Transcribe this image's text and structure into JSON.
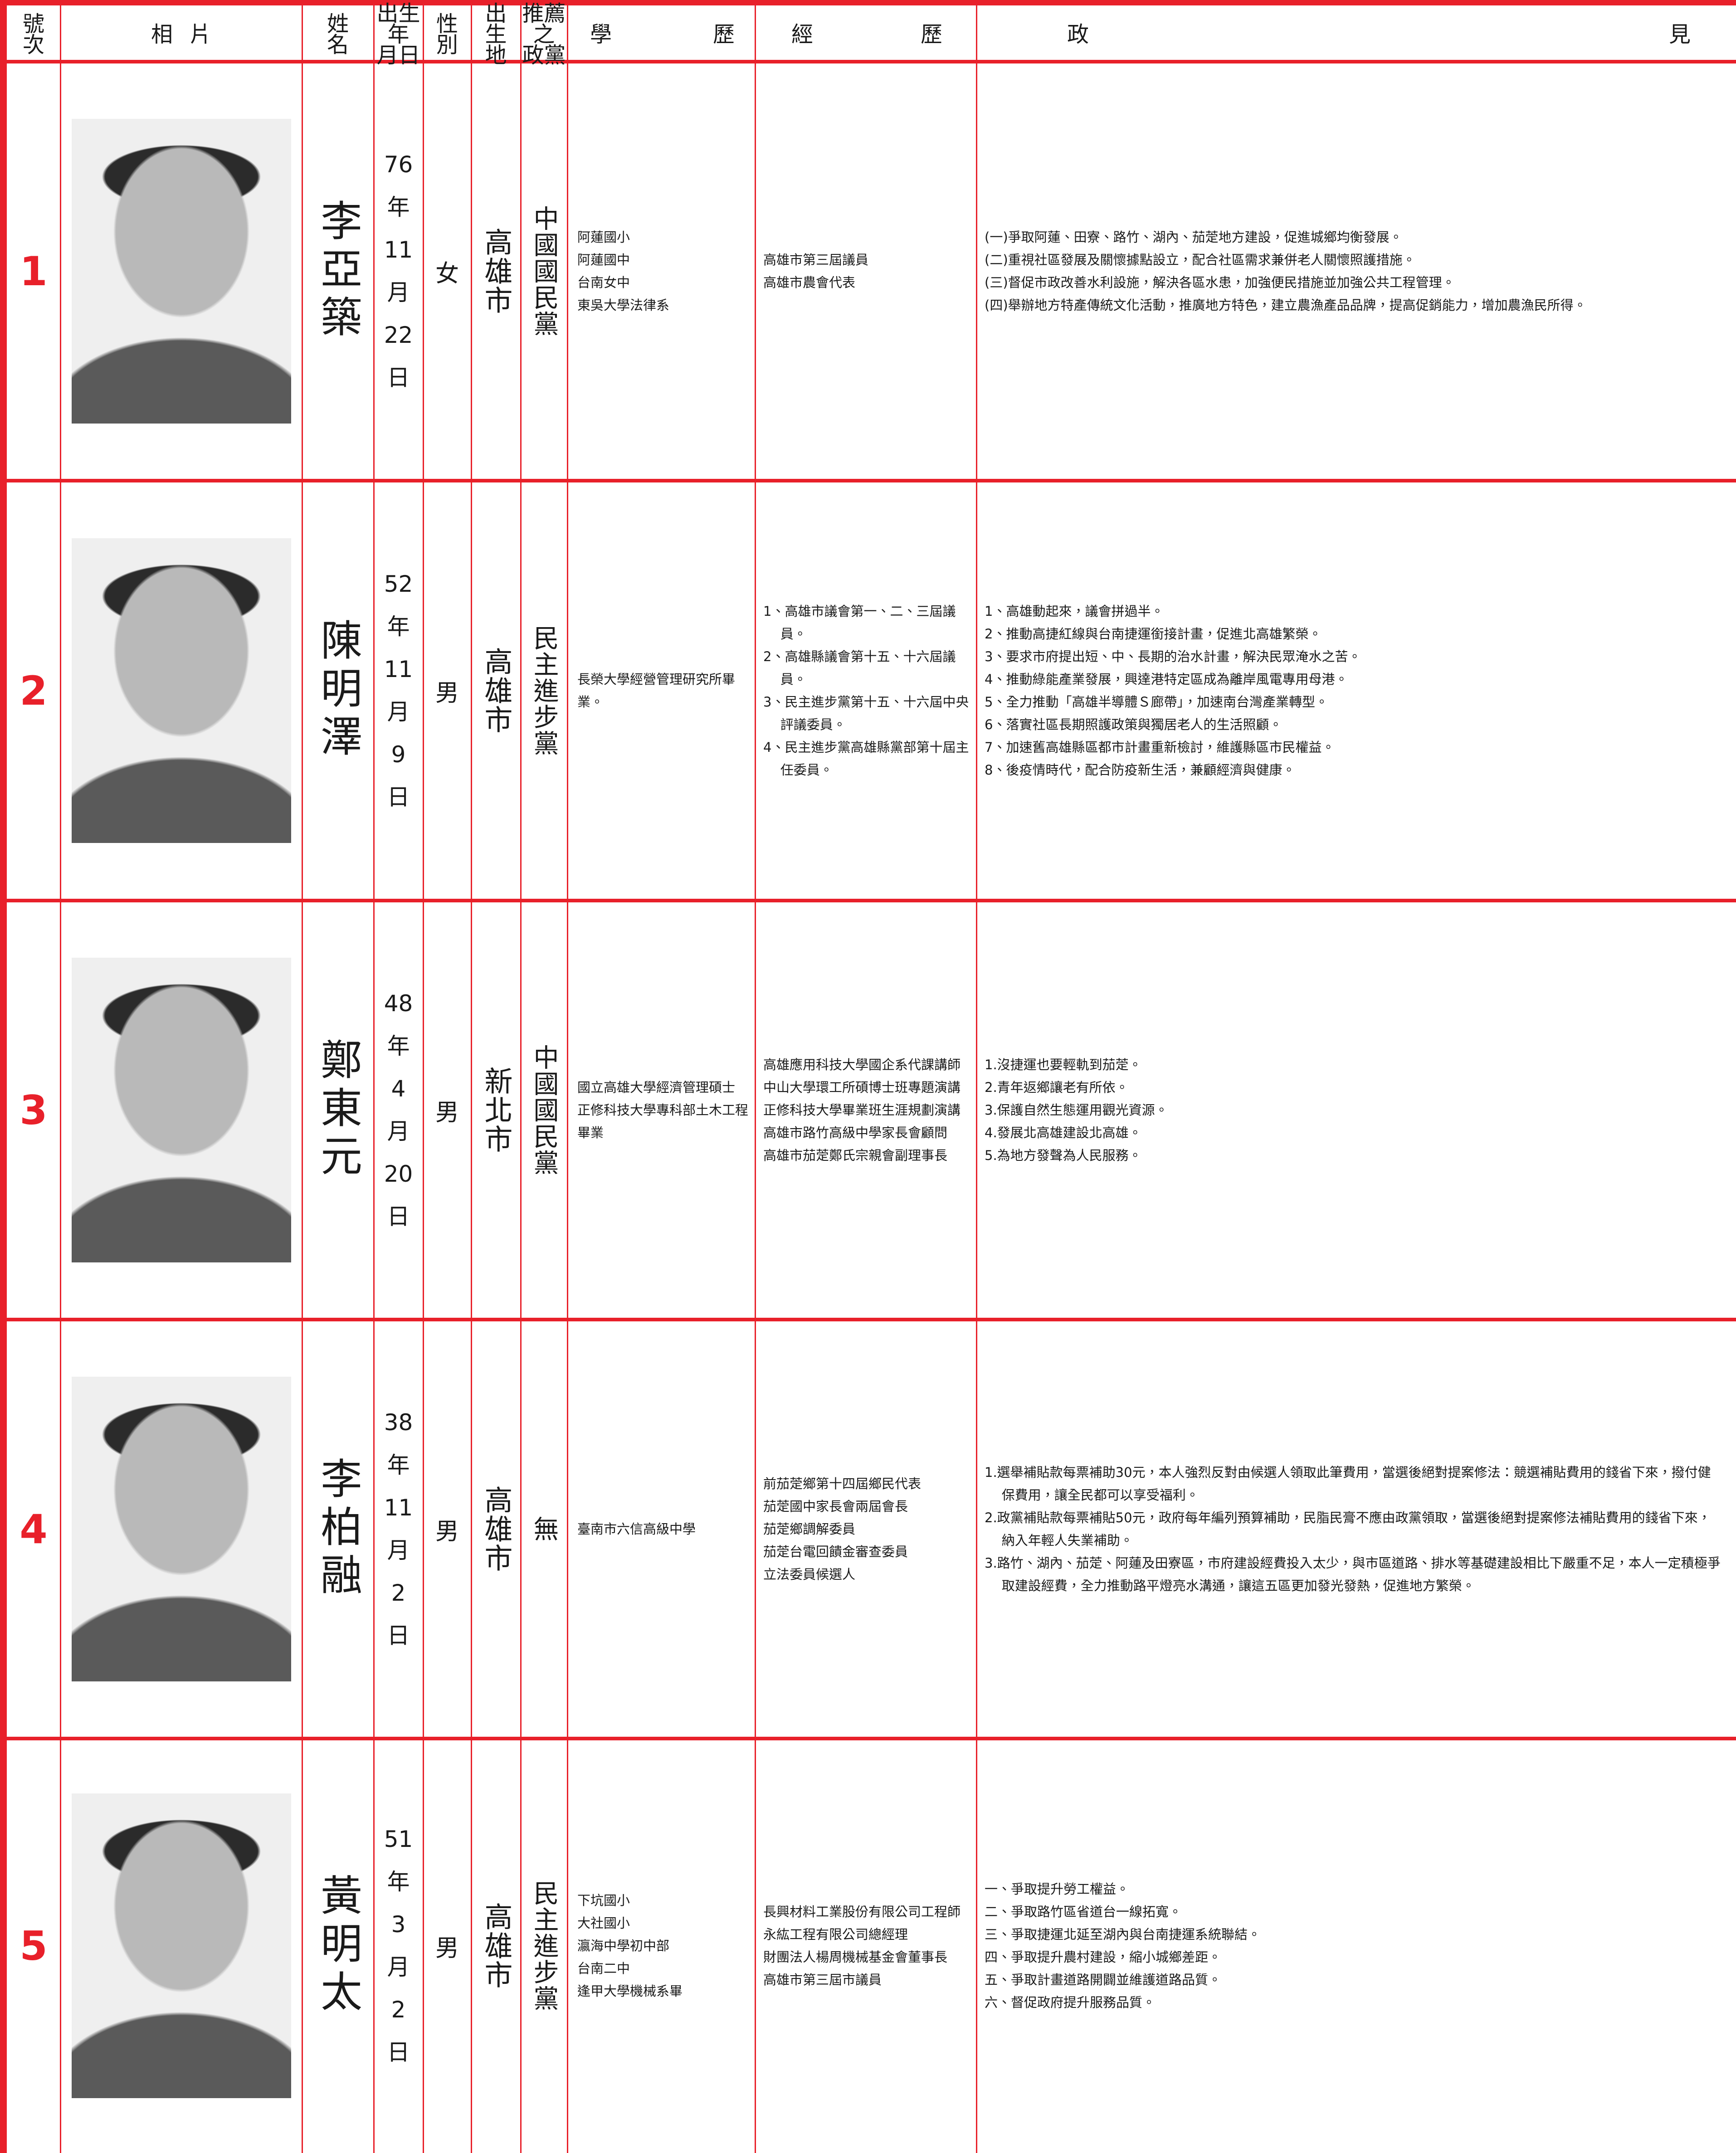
{
  "header": {
    "number": [
      "號",
      "次"
    ],
    "photo": "相片",
    "name": [
      "姓",
      "名"
    ],
    "birth": [
      "出生",
      "年",
      "月日"
    ],
    "sex": [
      "性",
      "別"
    ],
    "birthplace": [
      "出",
      "生",
      "地"
    ],
    "party": [
      "推薦",
      "之",
      "政黨"
    ],
    "education": "學歷",
    "experience": "經歷",
    "platform": "政見"
  },
  "candidates": [
    {
      "number": "1",
      "name": "李亞築",
      "birth": [
        "76",
        "年",
        "11",
        "月",
        "22",
        "日"
      ],
      "sex": "女",
      "birthplace": "高雄市",
      "party": "中國國民黨",
      "education": [
        "阿蓮國小",
        "阿蓮國中",
        "台南女中",
        "東吳大學法律系"
      ],
      "experience": [
        "高雄市第三屆議員",
        "高雄市農會代表"
      ],
      "platform": [
        "(一)爭取阿蓮、田寮、路竹、湖內、茄萣地方建設，促進城鄉均衡發展。",
        "(二)重視社區發展及關懷據點設立，配合社區需求兼併老人關懷照護措施。",
        "(三)督促市政改善水利設施，解決各區水患，加強便民措施並加強公共工程管理。",
        "(四)舉辦地方特產傳統文化活動，推廣地方特色，建立農漁產品品牌，提高促銷能力，增加農漁民所得。"
      ]
    },
    {
      "number": "2",
      "name": "陳明澤",
      "birth": [
        "52",
        "年",
        "11",
        "月",
        "9",
        "日"
      ],
      "sex": "男",
      "birthplace": "高雄市",
      "party": "民主進步黨",
      "education": [
        "長榮大學經營管理研究所畢業。"
      ],
      "experience": [
        "1、高雄市議會第一、二、三屆議員。",
        "2、高雄縣議會第十五、十六屆議員。",
        "3、民主進步黨第十五、十六屆中央評議委員。",
        "4、民主進步黨高雄縣黨部第十屆主任委員。"
      ],
      "platform": [
        "1、高雄動起來，議會拼過半。",
        "2、推動高捷紅線與台南捷運銜接計畫，促進北高雄繁榮。",
        "3、要求市府提出短、中、長期的治水計畫，解決民眾淹水之苦。",
        "4、推動綠能產業發展，興達港特定區成為離岸風電專用母港。",
        "5、全力推動「高雄半導體Ｓ廊帶」，加速南台灣產業轉型。",
        "6、落實社區長期照護政策與獨居老人的生活照顧。",
        "7、加速舊高雄縣區都市計畫重新檢討，維護縣區市民權益。",
        "8、後疫情時代，配合防疫新生活，兼顧經濟與健康。"
      ]
    },
    {
      "number": "3",
      "name": "鄭東元",
      "birth": [
        "48",
        "年",
        "4",
        "月",
        "20",
        "日"
      ],
      "sex": "男",
      "birthplace": "新北市",
      "party": "中國國民黨",
      "education": [
        "國立高雄大學經濟管理碩士",
        "正修科技大學專科部土木工程畢業"
      ],
      "experience": [
        "高雄應用科技大學國企系代課講師",
        "中山大學環工所碩博士班專題演講",
        "正修科技大學畢業班生涯規劃演講",
        "高雄市路竹高級中學家長會顧問",
        "高雄市茄萣鄭氏宗親會副理事長"
      ],
      "platform": [
        "1.沒捷運也要輕軌到茄萣。",
        "2.青年返鄉讓老有所依。",
        "3.保護自然生態運用觀光資源。",
        "4.發展北高雄建設北高雄。",
        "5.為地方發聲為人民服務。"
      ]
    },
    {
      "number": "4",
      "name": "李柏融",
      "birth": [
        "38",
        "年",
        "11",
        "月",
        "2",
        "日"
      ],
      "sex": "男",
      "birthplace": "高雄市",
      "party": "無",
      "education": [
        "臺南市六信高級中學"
      ],
      "experience": [
        "前茄萣鄉第十四屆鄉民代表",
        "茄萣國中家長會兩屆會長",
        "茄萣鄉調解委員",
        "茄萣台電回饋金審查委員",
        "立法委員候選人"
      ],
      "platform": [
        "1.選舉補貼款每票補助30元，本人強烈反對由候選人領取此筆費用，當選後絕對提案修法：競選補貼費用的錢省下來，撥付健保費用，讓全民都可以享受福利。",
        "2.政黨補貼款每票補貼50元，政府每年編列預算補助，民脂民膏不應由政黨領取，當選後絕對提案修法補貼費用的錢省下來，納入年輕人失業補助。",
        "3.路竹、湖內、茄萣、阿蓮及田寮區，市府建設經費投入太少，與市區道路、排水等基礎建設相比下嚴重不足，本人一定積極爭取建設經費，全力推動路平燈亮水溝通，讓這五區更加發光發熱，促進地方繁榮。"
      ]
    },
    {
      "number": "5",
      "name": "黃明太",
      "birth": [
        "51",
        "年",
        "3",
        "月",
        "2",
        "日"
      ],
      "sex": "男",
      "birthplace": "高雄市",
      "party": "民主進步黨",
      "education": [
        "下坑國小",
        "大社國小",
        "瀛海中學初中部",
        "台南二中",
        "逢甲大學機械系畢"
      ],
      "experience": [
        "長興材料工業股份有限公司工程師",
        "永紘工程有限公司總經理",
        "財團法人楊周機械基金會董事長",
        "高雄市第三屆市議員"
      ],
      "platform": [
        "一、爭取提升勞工權益。",
        "二、爭取路竹區省道台一線拓寬。",
        "三、爭取捷運北延至湖內與台南捷運系統聯結。",
        "四、爭取提升農村建設，縮小城鄉差距。",
        "五、爭取計畫道路開闢並維護道路品質。",
        "六、督促政府提升服務品質。"
      ]
    }
  ]
}
